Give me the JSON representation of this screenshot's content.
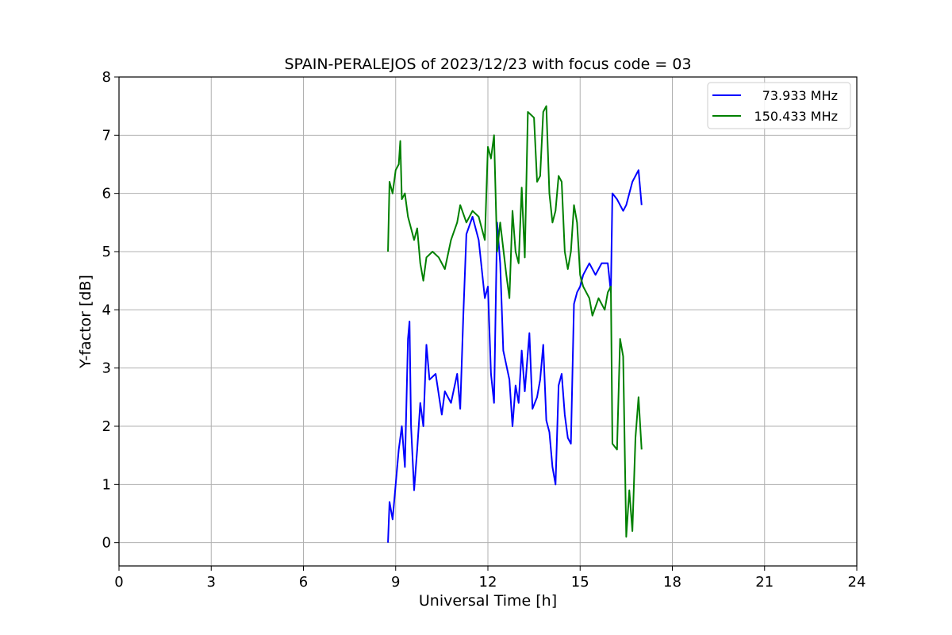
{
  "chart_data": {
    "type": "line",
    "title": "SPAIN-PERALEJOS of 2023/12/23 with focus code = 03",
    "xlabel": "Universal Time [h]",
    "ylabel": "Y-factor [dB]",
    "xlim": [
      0,
      24
    ],
    "ylim": [
      -0.4,
      8
    ],
    "xticks": [
      0,
      3,
      6,
      9,
      12,
      15,
      18,
      21,
      24
    ],
    "yticks": [
      0,
      1,
      2,
      3,
      4,
      5,
      6,
      7,
      8
    ],
    "grid": true,
    "legend_position": "top-right",
    "series": [
      {
        "name": "73.933 MHz",
        "color": "#0000ff",
        "points": [
          [
            8.75,
            0.0
          ],
          [
            8.8,
            0.7
          ],
          [
            8.9,
            0.4
          ],
          [
            9.0,
            1.0
          ],
          [
            9.1,
            1.6
          ],
          [
            9.2,
            2.0
          ],
          [
            9.3,
            1.3
          ],
          [
            9.4,
            3.5
          ],
          [
            9.45,
            3.8
          ],
          [
            9.5,
            2.0
          ],
          [
            9.6,
            0.9
          ],
          [
            9.7,
            1.6
          ],
          [
            9.8,
            2.4
          ],
          [
            9.9,
            2.0
          ],
          [
            10.0,
            3.4
          ],
          [
            10.1,
            2.8
          ],
          [
            10.3,
            2.9
          ],
          [
            10.5,
            2.2
          ],
          [
            10.6,
            2.6
          ],
          [
            10.8,
            2.4
          ],
          [
            11.0,
            2.9
          ],
          [
            11.1,
            2.3
          ],
          [
            11.2,
            3.9
          ],
          [
            11.3,
            5.3
          ],
          [
            11.5,
            5.6
          ],
          [
            11.7,
            5.2
          ],
          [
            11.9,
            4.2
          ],
          [
            12.0,
            4.4
          ],
          [
            12.1,
            2.9
          ],
          [
            12.2,
            2.4
          ],
          [
            12.3,
            5.5
          ],
          [
            12.4,
            4.8
          ],
          [
            12.5,
            3.3
          ],
          [
            12.7,
            2.8
          ],
          [
            12.8,
            2.0
          ],
          [
            12.9,
            2.7
          ],
          [
            13.0,
            2.4
          ],
          [
            13.1,
            3.3
          ],
          [
            13.2,
            2.6
          ],
          [
            13.35,
            3.6
          ],
          [
            13.45,
            2.3
          ],
          [
            13.6,
            2.5
          ],
          [
            13.7,
            2.8
          ],
          [
            13.8,
            3.4
          ],
          [
            13.9,
            2.1
          ],
          [
            14.0,
            1.9
          ],
          [
            14.1,
            1.3
          ],
          [
            14.2,
            1.0
          ],
          [
            14.3,
            2.7
          ],
          [
            14.4,
            2.9
          ],
          [
            14.5,
            2.2
          ],
          [
            14.6,
            1.8
          ],
          [
            14.7,
            1.7
          ],
          [
            14.8,
            4.1
          ],
          [
            14.9,
            4.3
          ],
          [
            15.0,
            4.4
          ],
          [
            15.1,
            4.6
          ],
          [
            15.3,
            4.8
          ],
          [
            15.5,
            4.6
          ],
          [
            15.7,
            4.8
          ],
          [
            15.9,
            4.8
          ],
          [
            16.0,
            4.3
          ],
          [
            16.05,
            6.0
          ],
          [
            16.2,
            5.9
          ],
          [
            16.4,
            5.7
          ],
          [
            16.5,
            5.8
          ],
          [
            16.7,
            6.2
          ],
          [
            16.9,
            6.4
          ],
          [
            17.0,
            5.8
          ]
        ]
      },
      {
        "name": "150.433 MHz",
        "color": "#008000",
        "points": [
          [
            8.75,
            5.0
          ],
          [
            8.8,
            6.2
          ],
          [
            8.9,
            6.0
          ],
          [
            9.0,
            6.4
          ],
          [
            9.1,
            6.5
          ],
          [
            9.15,
            6.9
          ],
          [
            9.2,
            5.9
          ],
          [
            9.3,
            6.0
          ],
          [
            9.4,
            5.6
          ],
          [
            9.5,
            5.4
          ],
          [
            9.6,
            5.2
          ],
          [
            9.7,
            5.4
          ],
          [
            9.8,
            4.8
          ],
          [
            9.9,
            4.5
          ],
          [
            10.0,
            4.9
          ],
          [
            10.2,
            5.0
          ],
          [
            10.4,
            4.9
          ],
          [
            10.6,
            4.7
          ],
          [
            10.8,
            5.2
          ],
          [
            11.0,
            5.5
          ],
          [
            11.1,
            5.8
          ],
          [
            11.3,
            5.5
          ],
          [
            11.5,
            5.7
          ],
          [
            11.7,
            5.6
          ],
          [
            11.9,
            5.2
          ],
          [
            12.0,
            6.8
          ],
          [
            12.1,
            6.6
          ],
          [
            12.2,
            7.0
          ],
          [
            12.3,
            5.0
          ],
          [
            12.4,
            5.5
          ],
          [
            12.6,
            4.6
          ],
          [
            12.7,
            4.2
          ],
          [
            12.8,
            5.7
          ],
          [
            12.9,
            5.0
          ],
          [
            13.0,
            4.8
          ],
          [
            13.1,
            6.1
          ],
          [
            13.2,
            4.9
          ],
          [
            13.3,
            7.4
          ],
          [
            13.5,
            7.3
          ],
          [
            13.6,
            6.2
          ],
          [
            13.7,
            6.3
          ],
          [
            13.8,
            7.4
          ],
          [
            13.9,
            7.5
          ],
          [
            14.0,
            6.0
          ],
          [
            14.1,
            5.5
          ],
          [
            14.2,
            5.7
          ],
          [
            14.3,
            6.3
          ],
          [
            14.4,
            6.2
          ],
          [
            14.5,
            5.0
          ],
          [
            14.6,
            4.7
          ],
          [
            14.7,
            5.0
          ],
          [
            14.8,
            5.8
          ],
          [
            14.9,
            5.5
          ],
          [
            15.0,
            4.6
          ],
          [
            15.1,
            4.4
          ],
          [
            15.3,
            4.2
          ],
          [
            15.4,
            3.9
          ],
          [
            15.6,
            4.2
          ],
          [
            15.8,
            4.0
          ],
          [
            15.9,
            4.3
          ],
          [
            16.0,
            4.4
          ],
          [
            16.05,
            1.7
          ],
          [
            16.2,
            1.6
          ],
          [
            16.3,
            3.5
          ],
          [
            16.4,
            3.2
          ],
          [
            16.5,
            0.1
          ],
          [
            16.6,
            0.9
          ],
          [
            16.7,
            0.2
          ],
          [
            16.8,
            1.8
          ],
          [
            16.9,
            2.5
          ],
          [
            17.0,
            1.6
          ]
        ]
      }
    ]
  }
}
